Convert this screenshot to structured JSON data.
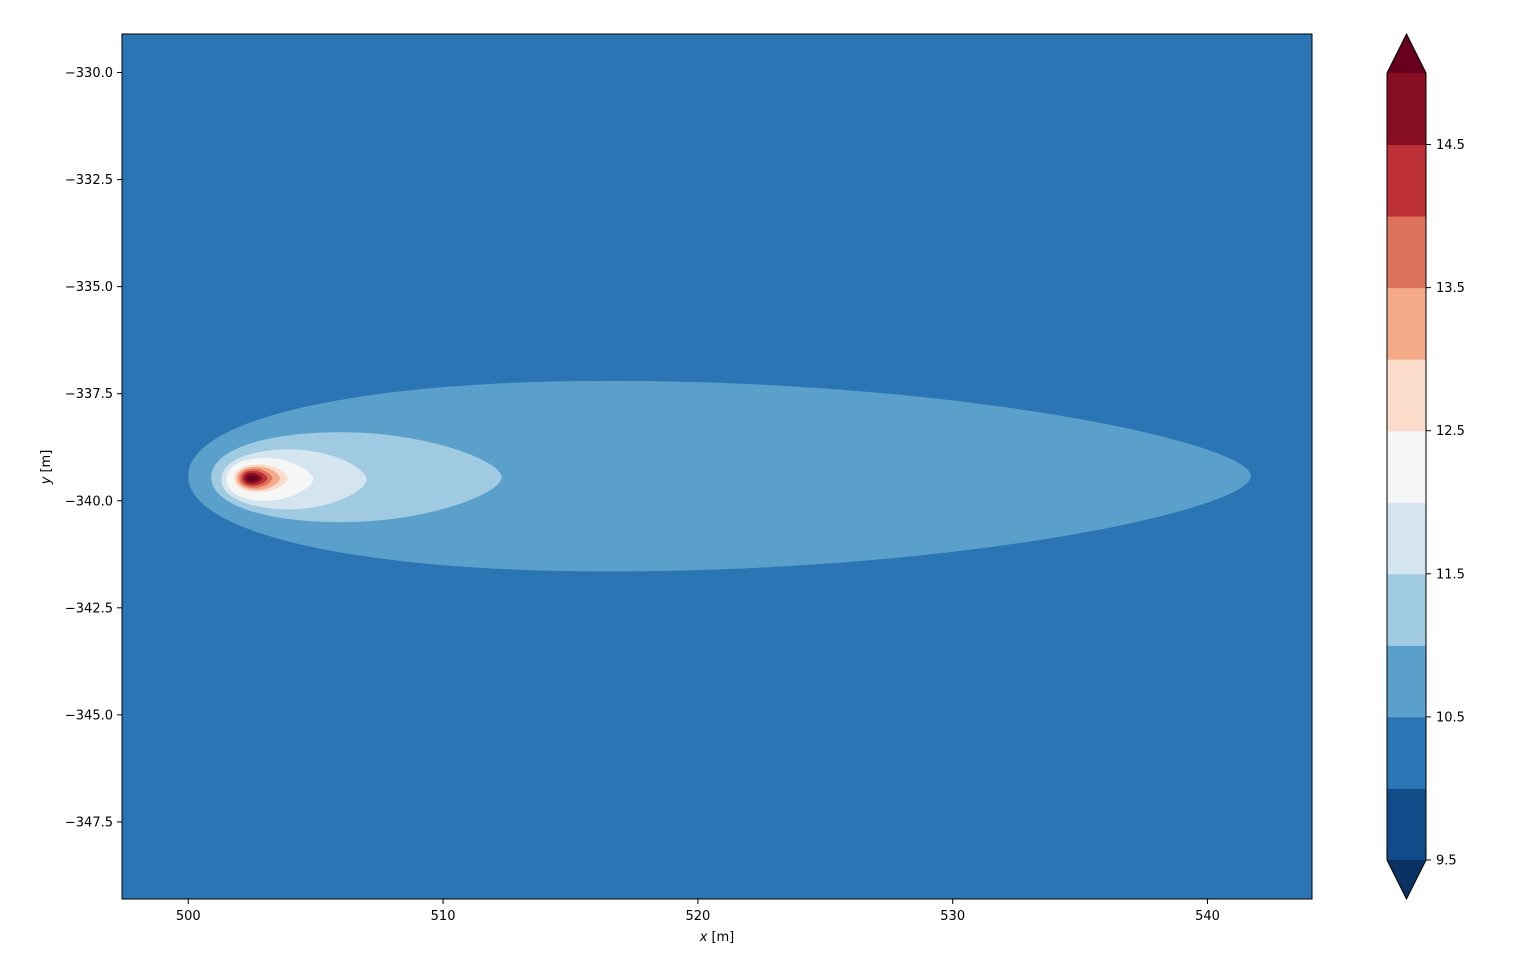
{
  "chart_data": {
    "type": "heatmap",
    "subtype": "filled-contour",
    "xlabel_var": "x",
    "xlabel_unit": "[m]",
    "ylabel_var": "y",
    "ylabel_unit": "[m]",
    "xlim": [
      497.4,
      544.1
    ],
    "ylim": [
      -349.3,
      -329.1
    ],
    "x_ticks": [
      500,
      510,
      520,
      530,
      540
    ],
    "x_tick_labels": [
      "500",
      "510",
      "520",
      "530",
      "540"
    ],
    "y_ticks": [
      -330.0,
      -332.5,
      -335.0,
      -337.5,
      -340.0,
      -342.5,
      -345.0,
      -347.5
    ],
    "y_tick_labels": [
      "−330.0",
      "−332.5",
      "−335.0",
      "−337.5",
      "−340.0",
      "−342.5",
      "−345.0",
      "−347.5"
    ],
    "background_level_color": "#2c75b4",
    "contour_regions": [
      {
        "level_min": 10.5,
        "level_max": 11.0,
        "color": "#5aa0ca",
        "x_min": 500.0,
        "x_max": 541.7,
        "y_min": -341.65,
        "y_max": -337.2,
        "x_peak": 516.5
      },
      {
        "level_min": 11.0,
        "level_max": 11.5,
        "color": "#9fcae1",
        "x_min": 500.9,
        "x_max": 512.3,
        "y_min": -340.5,
        "y_max": -338.4,
        "x_peak": 506.0
      },
      {
        "level_min": 11.5,
        "level_max": 12.0,
        "color": "#d4e5f0",
        "x_min": 501.3,
        "x_max": 507.0,
        "y_min": -340.2,
        "y_max": -338.8,
        "x_peak": 504.0
      },
      {
        "level_min": 12.0,
        "level_max": 12.5,
        "color": "#f6f6f6",
        "x_min": 501.5,
        "x_max": 504.9,
        "y_min": -340.0,
        "y_max": -339.0,
        "x_peak": 503.0
      },
      {
        "level_min": 12.5,
        "level_max": 13.0,
        "color": "#fbdbc9",
        "x_min": 501.8,
        "x_max": 503.9,
        "y_min": -339.8,
        "y_max": -339.15,
        "x_peak": 502.8
      },
      {
        "level_min": 13.0,
        "level_max": 13.5,
        "color": "#f4aa89",
        "x_min": 501.9,
        "x_max": 503.6,
        "y_min": -339.75,
        "y_max": -339.2,
        "x_peak": 502.7
      },
      {
        "level_min": 13.5,
        "level_max": 14.0,
        "color": "#de735d",
        "x_min": 502.0,
        "x_max": 503.3,
        "y_min": -339.7,
        "y_max": -339.25,
        "x_peak": 502.6
      },
      {
        "level_min": 14.0,
        "level_max": 14.5,
        "color": "#bd2f36",
        "x_min": 502.1,
        "x_max": 503.1,
        "y_min": -339.65,
        "y_max": -339.3,
        "x_peak": 502.55
      },
      {
        "level_min": 14.5,
        "level_max": 15.0,
        "color": "#880e23",
        "x_min": 502.2,
        "x_max": 502.9,
        "y_min": -339.6,
        "y_max": -339.35,
        "x_peak": 502.5
      },
      {
        "level_min": 15.0,
        "level_max": null,
        "color": "#67001f",
        "x_min": 502.3,
        "x_max": 502.75,
        "y_min": -339.55,
        "y_max": -339.4,
        "x_peak": 502.5
      }
    ],
    "colorbar": {
      "levels": [
        9.5,
        10.0,
        10.5,
        11.0,
        11.5,
        12.0,
        12.5,
        13.0,
        13.5,
        14.0,
        14.5,
        15.0
      ],
      "band_colors": [
        "#124b89",
        "#2c75b4",
        "#5aa0ca",
        "#9fcae1",
        "#d4e5f0",
        "#f6f6f6",
        "#fbdbc9",
        "#f4aa89",
        "#de735d",
        "#bd2f36",
        "#880e23"
      ],
      "extend_low_color": "#0a3263",
      "extend_high_color": "#67001f",
      "tick_values": [
        9.5,
        10.5,
        11.5,
        12.5,
        13.5,
        14.5
      ],
      "tick_labels": [
        "9.5",
        "10.5",
        "11.5",
        "12.5",
        "13.5",
        "14.5"
      ],
      "extend": "both",
      "placement": "right"
    }
  }
}
